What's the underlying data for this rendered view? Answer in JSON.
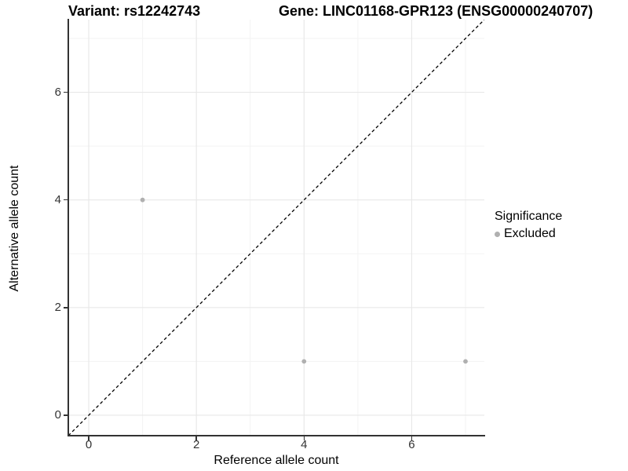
{
  "titles": {
    "variant": "Variant: rs12242743",
    "gene": "Gene: LINC01168-GPR123 (ENSG00000240707)"
  },
  "legend": {
    "title": "Significance",
    "items": [
      {
        "label": "Excluded",
        "color": "#b0b0b0"
      }
    ]
  },
  "colors": {
    "point": "#b0b0b0",
    "grid_major": "#e8e8e8",
    "grid_minor": "#f3f3f3",
    "axis_line": "#333333",
    "reference_line": "#000000",
    "tick_text": "#333333"
  },
  "chart_data": {
    "type": "scatter",
    "title": "Variant: rs12242743   Gene: LINC01168-GPR123 (ENSG00000240707)",
    "xlabel": "Reference allele count",
    "ylabel": "Alternative allele count",
    "xlim": [
      -0.38,
      7.35
    ],
    "ylim": [
      -0.38,
      7.35
    ],
    "x_ticks": [
      0,
      2,
      4,
      6
    ],
    "y_ticks": [
      0,
      2,
      4,
      6
    ],
    "x_minor_ticks": [
      1,
      3,
      5,
      7
    ],
    "y_minor_ticks": [
      1,
      3,
      5,
      7
    ],
    "grid": true,
    "legend_position": "right",
    "reference_line": {
      "kind": "identity-diagonal",
      "style": "dashed",
      "slope": 1,
      "intercept": 0
    },
    "series": [
      {
        "name": "Excluded",
        "color": "#b0b0b0",
        "points": [
          {
            "x": 1,
            "y": 4
          },
          {
            "x": 4,
            "y": 1
          },
          {
            "x": 7,
            "y": 1
          }
        ]
      }
    ]
  }
}
